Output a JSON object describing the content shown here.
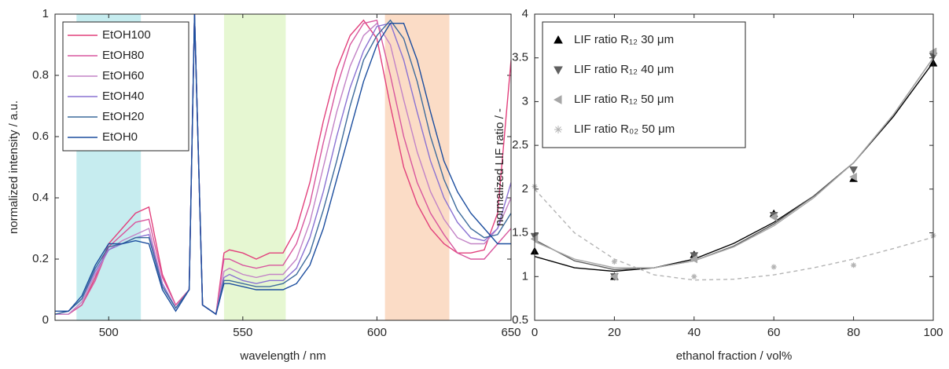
{
  "chart_data": [
    {
      "type": "line",
      "xlabel": "wavelength / nm",
      "ylabel": "normalized intensity / a.u.",
      "xlim": [
        480,
        650
      ],
      "ylim": [
        0,
        1
      ],
      "xticks": [
        500,
        550,
        600,
        650
      ],
      "yticks": [
        0,
        0.2,
        0.4,
        0.6,
        0.8,
        1
      ],
      "legend": "upper left",
      "grid": false,
      "bands": [
        {
          "xlim": [
            488,
            512
          ],
          "color": "#c6ecef"
        },
        {
          "xlim": [
            543,
            566
          ],
          "color": "#e6f7d2"
        },
        {
          "xlim": [
            603,
            627
          ],
          "color": "#fbdcc6"
        }
      ],
      "x": [
        480,
        485,
        490,
        495,
        500,
        505,
        510,
        515,
        520,
        525,
        530,
        532,
        535,
        540,
        543,
        545,
        550,
        555,
        560,
        565,
        570,
        575,
        580,
        585,
        590,
        595,
        600,
        605,
        610,
        615,
        620,
        625,
        630,
        635,
        640,
        645,
        650
      ],
      "series": [
        {
          "name": "EtOH100",
          "color": "#e2407c",
          "values": [
            0.02,
            0.02,
            0.05,
            0.14,
            0.25,
            0.3,
            0.35,
            0.37,
            0.15,
            0.05,
            0.1,
            1,
            0.05,
            0.02,
            0.22,
            0.23,
            0.22,
            0.2,
            0.22,
            0.22,
            0.3,
            0.45,
            0.65,
            0.82,
            0.93,
            0.98,
            0.92,
            0.7,
            0.5,
            0.38,
            0.3,
            0.25,
            0.22,
            0.22,
            0.23,
            0.35,
            0.85
          ]
        },
        {
          "name": "EtOH80",
          "color": "#d8579e",
          "values": [
            0.02,
            0.02,
            0.05,
            0.13,
            0.24,
            0.28,
            0.32,
            0.33,
            0.14,
            0.05,
            0.1,
            1,
            0.05,
            0.02,
            0.2,
            0.2,
            0.18,
            0.17,
            0.18,
            0.18,
            0.25,
            0.38,
            0.58,
            0.76,
            0.9,
            0.97,
            0.98,
            0.8,
            0.6,
            0.45,
            0.35,
            0.28,
            0.22,
            0.2,
            0.2,
            0.25,
            0.3
          ]
        },
        {
          "name": "EtOH60",
          "color": "#c383c6",
          "values": [
            0.02,
            0.02,
            0.06,
            0.15,
            0.23,
            0.26,
            0.28,
            0.3,
            0.12,
            0.04,
            0.1,
            1,
            0.05,
            0.02,
            0.16,
            0.17,
            0.15,
            0.14,
            0.15,
            0.15,
            0.2,
            0.32,
            0.5,
            0.68,
            0.83,
            0.93,
            0.97,
            0.9,
            0.72,
            0.55,
            0.42,
            0.33,
            0.27,
            0.25,
            0.25,
            0.3,
            0.4
          ]
        },
        {
          "name": "EtOH40",
          "color": "#8a72d2",
          "values": [
            0.02,
            0.03,
            0.07,
            0.16,
            0.23,
            0.25,
            0.27,
            0.28,
            0.12,
            0.04,
            0.1,
            1,
            0.05,
            0.02,
            0.14,
            0.15,
            0.13,
            0.12,
            0.13,
            0.13,
            0.17,
            0.27,
            0.42,
            0.6,
            0.76,
            0.88,
            0.96,
            0.97,
            0.85,
            0.68,
            0.52,
            0.4,
            0.32,
            0.27,
            0.26,
            0.3,
            0.45
          ]
        },
        {
          "name": "EtOH20",
          "color": "#3d6b9c",
          "values": [
            0.02,
            0.03,
            0.07,
            0.17,
            0.24,
            0.25,
            0.27,
            0.27,
            0.11,
            0.04,
            0.1,
            1,
            0.05,
            0.02,
            0.13,
            0.13,
            0.12,
            0.11,
            0.11,
            0.12,
            0.15,
            0.22,
            0.36,
            0.52,
            0.7,
            0.85,
            0.93,
            0.98,
            0.92,
            0.78,
            0.6,
            0.46,
            0.36,
            0.3,
            0.27,
            0.28,
            0.35
          ]
        },
        {
          "name": "EtOH0",
          "color": "#1b4d9e",
          "values": [
            0.03,
            0.03,
            0.08,
            0.18,
            0.25,
            0.25,
            0.26,
            0.25,
            0.1,
            0.03,
            0.1,
            1,
            0.05,
            0.02,
            0.12,
            0.12,
            0.11,
            0.1,
            0.1,
            0.1,
            0.12,
            0.18,
            0.3,
            0.46,
            0.62,
            0.78,
            0.9,
            0.97,
            0.97,
            0.85,
            0.68,
            0.52,
            0.42,
            0.35,
            0.3,
            0.25,
            0.25
          ]
        }
      ]
    },
    {
      "type": "scatter",
      "xlabel": "ethanol fraction / vol%",
      "ylabel": "normalized LIF ratio / -",
      "xlim": [
        0,
        100
      ],
      "ylim": [
        0.5,
        4
      ],
      "xticks": [
        0,
        20,
        40,
        60,
        80,
        100
      ],
      "yticks": [
        0.5,
        1,
        1.5,
        2,
        2.5,
        3,
        3.5,
        4
      ],
      "legend": "upper left",
      "grid": false,
      "x": [
        0,
        20,
        40,
        60,
        80,
        100
      ],
      "series": [
        {
          "name": "LIF ratio R₁₂ 30 μm",
          "color": "#000000",
          "marker": "triangle-up",
          "values": [
            1.29,
            1.0,
            1.25,
            1.72,
            2.12,
            3.44
          ],
          "fit": {
            "dashed": false,
            "x": [
              0,
              10,
              20,
              30,
              40,
              50,
              60,
              70,
              80,
              90,
              100
            ],
            "values": [
              1.23,
              1.1,
              1.06,
              1.1,
              1.2,
              1.38,
              1.62,
              1.92,
              2.3,
              2.83,
              3.45
            ]
          }
        },
        {
          "name": "LIF ratio R₁₂ 40 μm",
          "color": "#606060",
          "marker": "triangle-down",
          "values": [
            1.46,
            1.0,
            1.24,
            1.7,
            2.22,
            3.52
          ],
          "fit": {
            "dashed": false,
            "x": [
              0,
              10,
              20,
              30,
              40,
              50,
              60,
              70,
              80,
              90,
              100
            ],
            "values": [
              1.42,
              1.18,
              1.08,
              1.1,
              1.18,
              1.35,
              1.6,
              1.92,
              2.3,
              2.85,
              3.5
            ]
          }
        },
        {
          "name": "LIF ratio R₁₂ 50 μm",
          "color": "#a6a6a6",
          "marker": "triangle-left",
          "values": [
            1.43,
            1.0,
            1.2,
            1.68,
            2.14,
            3.57
          ],
          "fit": {
            "dashed": false,
            "x": [
              0,
              10,
              20,
              30,
              40,
              50,
              60,
              70,
              80,
              90,
              100
            ],
            "values": [
              1.4,
              1.2,
              1.1,
              1.1,
              1.18,
              1.34,
              1.58,
              1.9,
              2.3,
              2.85,
              3.5
            ]
          }
        },
        {
          "name": "LIF ratio R₀₂ 50 μm",
          "color": "#b4b4b4",
          "marker": "asterisk",
          "values": [
            2.03,
            1.17,
            1.0,
            1.11,
            1.13,
            1.47
          ],
          "fit": {
            "dashed": true,
            "x": [
              0,
              10,
              20,
              30,
              40,
              50,
              60,
              70,
              80,
              90,
              100
            ],
            "values": [
              2.0,
              1.5,
              1.2,
              1.02,
              0.96,
              0.97,
              1.02,
              1.1,
              1.2,
              1.32,
              1.45
            ]
          }
        }
      ]
    }
  ]
}
